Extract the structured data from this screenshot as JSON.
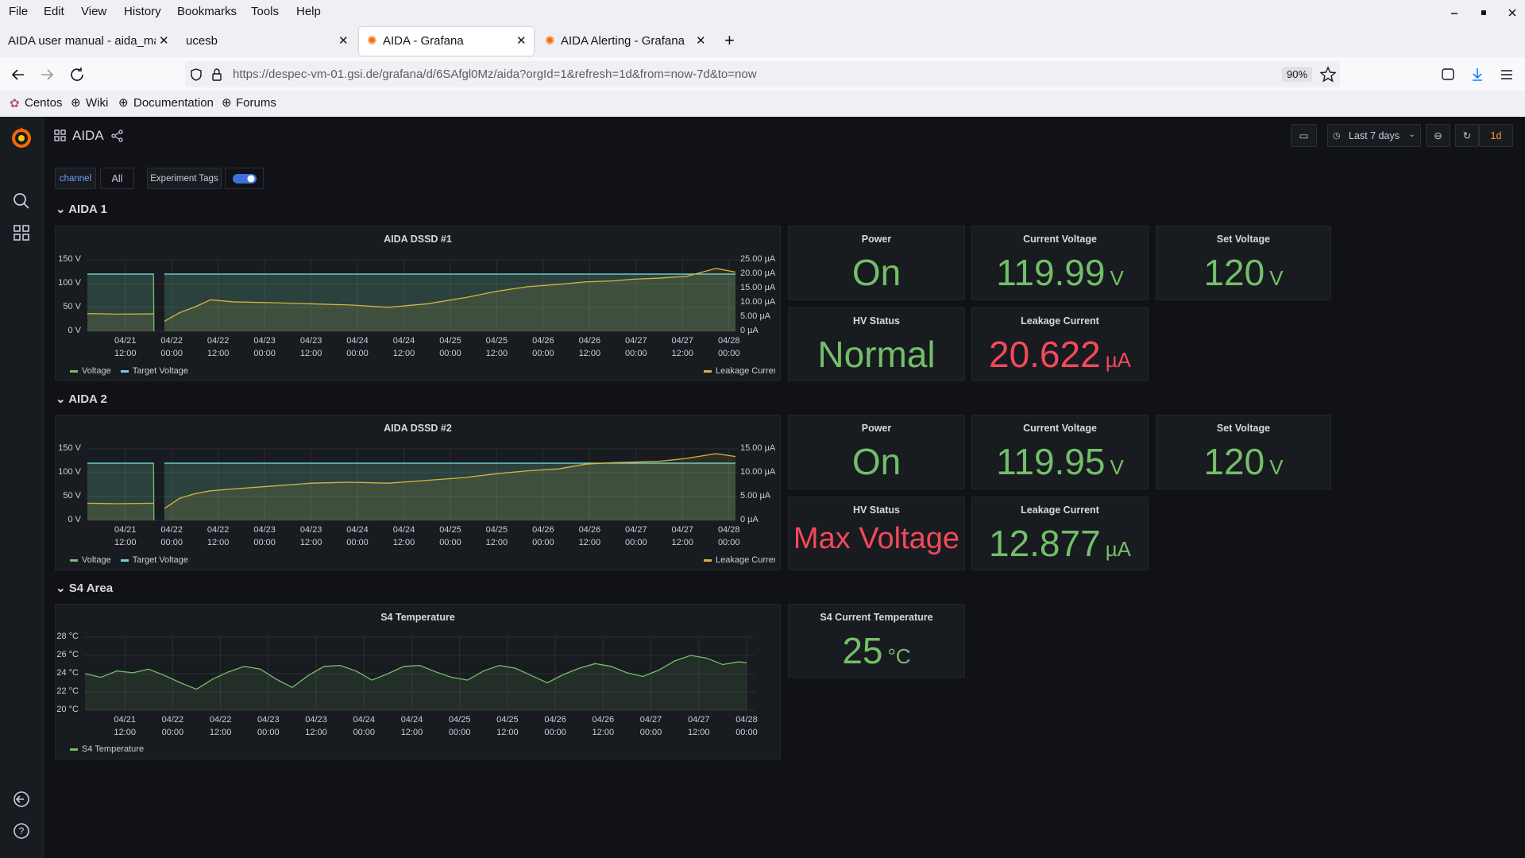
{
  "browser": {
    "menu": [
      "File",
      "Edit",
      "View",
      "History",
      "Bookmarks",
      "Tools",
      "Help"
    ],
    "tabs": [
      "AIDA user manual - aida_manual",
      "ucesb",
      "AIDA - Grafana",
      "AIDA Alerting - Grafana"
    ],
    "url": "https://despec-vm-01.gsi.de/grafana/d/6SAfgl0Mz/aida?orgId=1&refresh=1d&from=now-7d&to=now",
    "zoom": "90%",
    "bookmarks": [
      "Centos",
      "Wiki",
      "Documentation",
      "Forums"
    ]
  },
  "dashboard": {
    "title": "AIDA",
    "variable_label": "channel",
    "variable_value": "All",
    "tags_label": "Experiment Tags",
    "time_range": "Last 7 days",
    "refresh": "1d",
    "rows": [
      "AIDA 1",
      "AIDA 2",
      "S4 Area"
    ]
  },
  "chart_data": [
    {
      "type": "line",
      "title": "AIDA DSSD #1",
      "grid": true,
      "xlim": [
        2.2,
        169.7
      ],
      "xticks": [
        {
          "value": 12,
          "label": "04/21 12:00"
        },
        {
          "value": 24,
          "label": "04/22 00:00"
        },
        {
          "value": 36,
          "label": "04/22 12:00"
        },
        {
          "value": 48,
          "label": "04/23 00:00"
        },
        {
          "value": 60,
          "label": "04/23 12:00"
        },
        {
          "value": 72,
          "label": "04/24 00:00"
        },
        {
          "value": 84,
          "label": "04/24 12:00"
        },
        {
          "value": 96,
          "label": "04/25 00:00"
        },
        {
          "value": 108,
          "label": "04/25 12:00"
        },
        {
          "value": 120,
          "label": "04/26 00:00"
        },
        {
          "value": 132,
          "label": "04/26 12:00"
        },
        {
          "value": 144,
          "label": "04/27 00:00"
        },
        {
          "value": 156,
          "label": "04/27 12:00"
        },
        {
          "value": 168,
          "label": "04/28 00:00"
        }
      ],
      "ylim": [
        0,
        150
      ],
      "yticks": [
        {
          "value": 0,
          "label": "0 V"
        },
        {
          "value": 50,
          "label": "50 V"
        },
        {
          "value": 100,
          "label": "100 V"
        },
        {
          "value": 150,
          "label": "150 V"
        }
      ],
      "y2lim": [
        0,
        25
      ],
      "y2ticks": [
        {
          "value": 0,
          "label": "0 µA"
        },
        {
          "value": 5,
          "label": "5.00 µA"
        },
        {
          "value": 10,
          "label": "10.00 µA"
        },
        {
          "value": 15,
          "label": "15.00 µA"
        },
        {
          "value": 20,
          "label": "20.00 µA"
        },
        {
          "value": 25,
          "label": "25.00 µA"
        }
      ],
      "series": [
        {
          "name": "Voltage",
          "color": "#73bf69",
          "x": [
            2.2,
            19.3,
            19.4,
            20.7,
            22.1,
            169.7
          ],
          "values": [
            120,
            120,
            0,
            null,
            120,
            120
          ]
        },
        {
          "name": "Target Voltage",
          "color": "#6ed0e0",
          "x": [
            2.2,
            19.3,
            20.7,
            22.1,
            169.7
          ],
          "values": [
            120,
            120,
            null,
            120,
            120
          ]
        },
        {
          "name": "Leakage Current",
          "color": "#d6b440",
          "axis": "y2",
          "x": [
            2.2,
            10,
            19.3,
            20.7,
            22.1,
            26,
            30,
            34,
            40,
            50,
            60,
            70,
            80,
            90,
            100,
            108,
            116,
            124,
            131,
            138,
            143,
            150,
            157,
            164.7,
            169.7
          ],
          "values": [
            6.2,
            6.0,
            6.1,
            null,
            3.5,
            6.5,
            8.5,
            11.0,
            10.3,
            10.0,
            9.6,
            9.2,
            8.4,
            9.6,
            11.8,
            14.0,
            15.6,
            16.4,
            17.3,
            17.6,
            18.2,
            18.6,
            19.2,
            22.0,
            20.7
          ]
        }
      ]
    },
    {
      "type": "line",
      "title": "AIDA DSSD #2",
      "grid": true,
      "xlim": [
        2.2,
        169.7
      ],
      "xticks": [
        {
          "value": 12,
          "label": "04/21 12:00"
        },
        {
          "value": 24,
          "label": "04/22 00:00"
        },
        {
          "value": 36,
          "label": "04/22 12:00"
        },
        {
          "value": 48,
          "label": "04/23 00:00"
        },
        {
          "value": 60,
          "label": "04/23 12:00"
        },
        {
          "value": 72,
          "label": "04/24 00:00"
        },
        {
          "value": 84,
          "label": "04/24 12:00"
        },
        {
          "value": 96,
          "label": "04/25 00:00"
        },
        {
          "value": 108,
          "label": "04/25 12:00"
        },
        {
          "value": 120,
          "label": "04/26 00:00"
        },
        {
          "value": 132,
          "label": "04/26 12:00"
        },
        {
          "value": 144,
          "label": "04/27 00:00"
        },
        {
          "value": 156,
          "label": "04/27 12:00"
        },
        {
          "value": 168,
          "label": "04/28 00:00"
        }
      ],
      "ylim": [
        0,
        150
      ],
      "yticks": [
        {
          "value": 0,
          "label": "0 V"
        },
        {
          "value": 50,
          "label": "50 V"
        },
        {
          "value": 100,
          "label": "100 V"
        },
        {
          "value": 150,
          "label": "150 V"
        }
      ],
      "y2lim": [
        0,
        15
      ],
      "y2ticks": [
        {
          "value": 0,
          "label": "0 µA"
        },
        {
          "value": 5,
          "label": "5.00 µA"
        },
        {
          "value": 10,
          "label": "10.00 µA"
        },
        {
          "value": 15,
          "label": "15.00 µA"
        }
      ],
      "series": [
        {
          "name": "Voltage",
          "color": "#73bf69",
          "x": [
            2.2,
            19.3,
            19.4,
            20.7,
            22.1,
            169.7
          ],
          "values": [
            120,
            120,
            0,
            null,
            120,
            120
          ]
        },
        {
          "name": "Target Voltage",
          "color": "#6ed0e0",
          "x": [
            2.2,
            19.3,
            20.7,
            22.1,
            169.7
          ],
          "values": [
            120,
            120,
            null,
            120,
            120
          ]
        },
        {
          "name": "Leakage Current",
          "color": "#d6b440",
          "axis": "y2",
          "x": [
            2.2,
            10,
            19.3,
            20.7,
            22.1,
            26,
            30,
            34,
            40,
            50,
            60,
            70,
            80,
            90,
            100,
            108,
            116,
            124,
            131,
            138,
            143,
            150,
            157,
            164.7,
            169.7
          ],
          "values": [
            3.6,
            3.5,
            3.6,
            null,
            2.5,
            4.6,
            5.6,
            6.2,
            6.6,
            7.2,
            7.8,
            8.0,
            7.8,
            8.4,
            9.0,
            9.8,
            10.4,
            10.8,
            11.8,
            12.1,
            12.2,
            12.4,
            13.0,
            14.0,
            13.4
          ]
        }
      ]
    },
    {
      "type": "line",
      "title": "S4 Temperature",
      "grid": true,
      "xlim": [
        2,
        170
      ],
      "xticks": [
        {
          "value": 12,
          "label": "04/21 12:00"
        },
        {
          "value": 24,
          "label": "04/22 00:00"
        },
        {
          "value": 36,
          "label": "04/22 12:00"
        },
        {
          "value": 48,
          "label": "04/23 00:00"
        },
        {
          "value": 60,
          "label": "04/23 12:00"
        },
        {
          "value": 72,
          "label": "04/24 00:00"
        },
        {
          "value": 84,
          "label": "04/24 12:00"
        },
        {
          "value": 96,
          "label": "04/25 00:00"
        },
        {
          "value": 108,
          "label": "04/25 12:00"
        },
        {
          "value": 120,
          "label": "04/26 00:00"
        },
        {
          "value": 132,
          "label": "04/26 12:00"
        },
        {
          "value": 144,
          "label": "04/27 00:00"
        },
        {
          "value": 156,
          "label": "04/27 12:00"
        },
        {
          "value": 168,
          "label": "04/28 00:00"
        }
      ],
      "ylim": [
        20,
        28
      ],
      "yticks": [
        {
          "value": 20,
          "label": "20 °C"
        },
        {
          "value": 22,
          "label": "22 °C"
        },
        {
          "value": 24,
          "label": "24 °C"
        },
        {
          "value": 26,
          "label": "26 °C"
        },
        {
          "value": 28,
          "label": "28 °C"
        }
      ],
      "series": [
        {
          "name": "S4 Temperature",
          "color": "#73bf69",
          "x": [
            2,
            6,
            10,
            14,
            18,
            22,
            26,
            30,
            34,
            38,
            42,
            46,
            50,
            54,
            58,
            62,
            66,
            70,
            74,
            78,
            82,
            86,
            90,
            94,
            98,
            102,
            106,
            110,
            114,
            118,
            122,
            126,
            130,
            134,
            138,
            142,
            146,
            150,
            154,
            158,
            162,
            166,
            168
          ],
          "values": [
            24.0,
            23.6,
            24.3,
            24.1,
            24.5,
            23.8,
            23.0,
            22.3,
            23.4,
            24.2,
            24.8,
            24.5,
            23.4,
            22.5,
            23.8,
            24.8,
            24.9,
            24.3,
            23.3,
            24.0,
            24.8,
            24.9,
            24.2,
            23.6,
            23.3,
            24.3,
            24.9,
            24.6,
            23.8,
            23.0,
            23.9,
            24.6,
            25.1,
            24.8,
            24.1,
            23.7,
            24.4,
            25.4,
            26.0,
            25.7,
            25.0,
            25.3,
            25.2
          ]
        }
      ]
    }
  ],
  "stats": [
    {
      "title": "Power",
      "value": "On",
      "color": "#73bf69"
    },
    {
      "title": "Current Voltage",
      "value": 119.99,
      "unit": "V",
      "color": "#73bf69"
    },
    {
      "title": "Set Voltage",
      "value": 120,
      "unit": "V",
      "color": "#73bf69"
    },
    {
      "title": "HV Status",
      "value": "Normal",
      "color": "#73bf69"
    },
    {
      "title": "Leakage Current",
      "value": 20.622,
      "unit": "µA",
      "color": "#f2495c"
    },
    {
      "title": "Power",
      "value": "On",
      "color": "#73bf69"
    },
    {
      "title": "Current Voltage",
      "value": 119.95,
      "unit": "V",
      "color": "#73bf69"
    },
    {
      "title": "Set Voltage",
      "value": 120,
      "unit": "V",
      "color": "#73bf69"
    },
    {
      "title": "HV Status",
      "value": "Max Voltage",
      "color": "#f2495c"
    },
    {
      "title": "Leakage Current",
      "value": 12.877,
      "unit": "µA",
      "color": "#73bf69"
    },
    {
      "title": "S4 Current Temperature",
      "value": 25,
      "unit": "°C",
      "color": "#73bf69"
    }
  ]
}
